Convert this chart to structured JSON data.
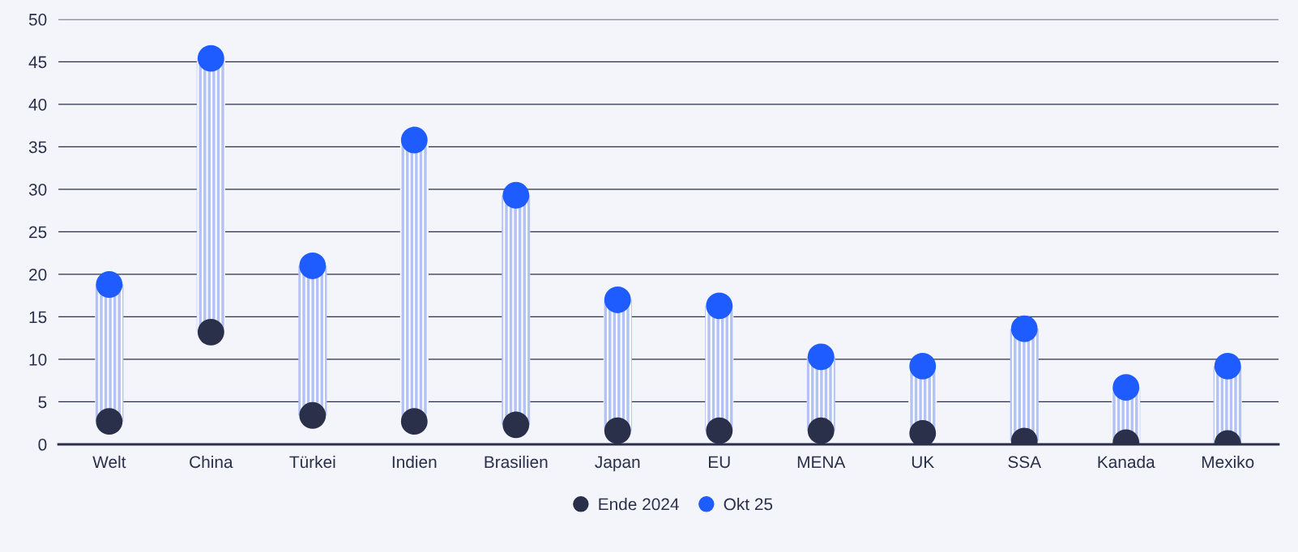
{
  "chart_data": {
    "type": "bar",
    "categories": [
      "Welt",
      "China",
      "Türkei",
      "Indien",
      "Brasilien",
      "Japan",
      "EU",
      "MENA",
      "UK",
      "SSA",
      "Kanada",
      "Mexiko"
    ],
    "base": [
      2.7,
      13.2,
      3.4,
      2.7,
      2.3,
      1.6,
      1.6,
      1.6,
      1.3,
      0.4,
      0.2,
      0.1
    ],
    "values": [
      16.1,
      32.2,
      17.6,
      33.1,
      27.0,
      15.4,
      14.7,
      8.7,
      7.9,
      13.2,
      6.5,
      9.1
    ],
    "color": "#b4c3f5",
    "series": [
      {
        "type": "scatter",
        "name": "Ende 2024",
        "color": "#2a2f4a",
        "values": [
          2.7,
          13.2,
          3.4,
          2.7,
          2.3,
          1.6,
          1.6,
          1.6,
          1.3,
          0.4,
          0.2,
          0.1
        ]
      },
      {
        "type": "scatter",
        "name": "Okt 25",
        "color": "#1f5cff",
        "values": [
          18.8,
          45.4,
          21.0,
          35.8,
          29.3,
          17.0,
          16.3,
          10.3,
          9.2,
          13.6,
          6.7,
          9.2
        ]
      }
    ],
    "ylim": [
      0,
      50
    ],
    "yticks": [
      0,
      5,
      10,
      15,
      20,
      25,
      30,
      35,
      40,
      45,
      50
    ],
    "grid": "y",
    "legend": "bottom",
    "marker": "circle"
  }
}
